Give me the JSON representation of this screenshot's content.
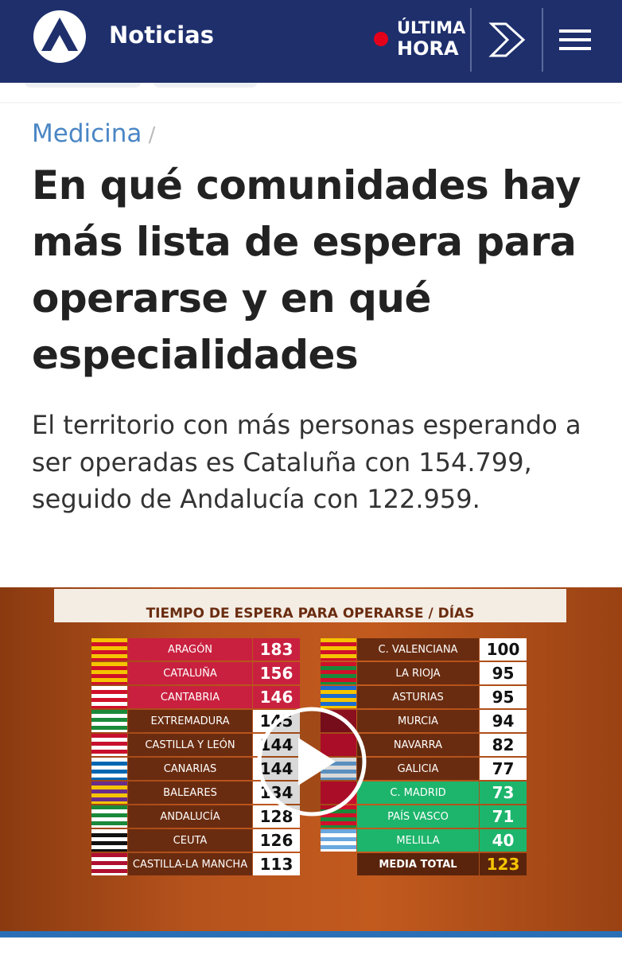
{
  "header": {
    "brand": "Noticias",
    "breaking_line1": "ÚLTIMA",
    "breaking_line2": "HORA"
  },
  "breadcrumb": "Medicina",
  "title": "En qué comunidades hay más lista de espera para operarse y en qué especialidades",
  "subtitle": "El territorio con más personas esperando a ser operadas es Cataluña con 154.799, seguido de Andalucía con 122.959.",
  "video": {
    "title": "TIEMPO DE ESPERA PARA OPERARSE / DÍAS",
    "left": [
      {
        "name": "ARAGÓN",
        "value": 183,
        "color": "#c9203f"
      },
      {
        "name": "CATALUÑA",
        "value": 156,
        "color": "#c9203f"
      },
      {
        "name": "CANTABRIA",
        "value": 146,
        "color": "#c9203f"
      },
      {
        "name": "EXTREMADURA",
        "value": 145,
        "color": "#6a2c10"
      },
      {
        "name": "CASTILLA Y LEÓN",
        "value": 144,
        "color": "#6a2c10"
      },
      {
        "name": "CANARIAS",
        "value": 144,
        "color": "#6a2c10"
      },
      {
        "name": "BALEARES",
        "value": 134,
        "color": "#6a2c10"
      },
      {
        "name": "ANDALUCÍA",
        "value": 128,
        "color": "#6a2c10"
      },
      {
        "name": "CEUTA",
        "value": 126,
        "color": "#6a2c10"
      },
      {
        "name": "CASTILLA-LA MANCHA",
        "value": 113,
        "color": "#6a2c10"
      }
    ],
    "right": [
      {
        "name": "C. VALENCIANA",
        "value": 100,
        "color": "#6a2c10"
      },
      {
        "name": "LA RIOJA",
        "value": 95,
        "color": "#6a2c10"
      },
      {
        "name": "ASTURIAS",
        "value": 95,
        "color": "#6a2c10"
      },
      {
        "name": "MURCIA",
        "value": 94,
        "color": "#6a2c10"
      },
      {
        "name": "NAVARRA",
        "value": 82,
        "color": "#6a2c10"
      },
      {
        "name": "GALICIA",
        "value": 77,
        "color": "#6a2c10"
      },
      {
        "name": "C. MADRID",
        "value": 73,
        "color": "#1db56c"
      },
      {
        "name": "PAÍS VASCO",
        "value": 71,
        "color": "#1db56c"
      },
      {
        "name": "MELILLA",
        "value": 40,
        "color": "#1db56c"
      }
    ],
    "total": {
      "label": "MEDIA TOTAL",
      "value": 123
    }
  }
}
